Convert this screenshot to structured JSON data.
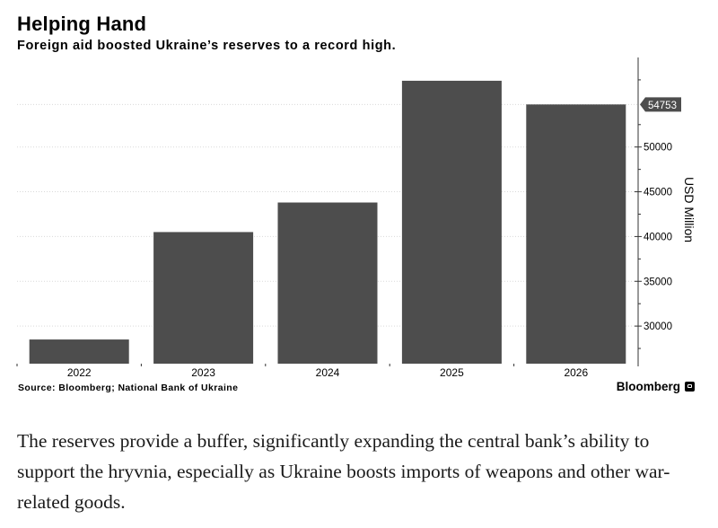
{
  "header": {
    "title": "Helping Hand",
    "subtitle": "Foreign aid boosted Ukraine’s reserves to a record high."
  },
  "footer": {
    "source": "Source: Bloomberg; National Bank of Ukraine",
    "brand": "Bloomberg"
  },
  "caption": "The reserves provide a buffer, significantly expanding the central bank’s ability to support the hryvnia, especially as Ukraine boosts imports of weapons and other war-related goods.",
  "colors": {
    "bar": "#4d4d4d",
    "axis": "#333333",
    "grid": "#d9d9d9",
    "label_box": "#4d4d4d"
  },
  "chart_data": {
    "type": "bar",
    "categories": [
      "2022",
      "2023",
      "2024",
      "2025",
      "2026"
    ],
    "values": [
      28500,
      40500,
      43800,
      57400,
      54753
    ],
    "ylabel": "USD Million",
    "ylim": [
      25800,
      60000
    ],
    "yticks": [
      30000,
      35000,
      40000,
      45000,
      50000
    ],
    "last_value_label": "54753",
    "grid": true,
    "y_axis_side": "right"
  }
}
